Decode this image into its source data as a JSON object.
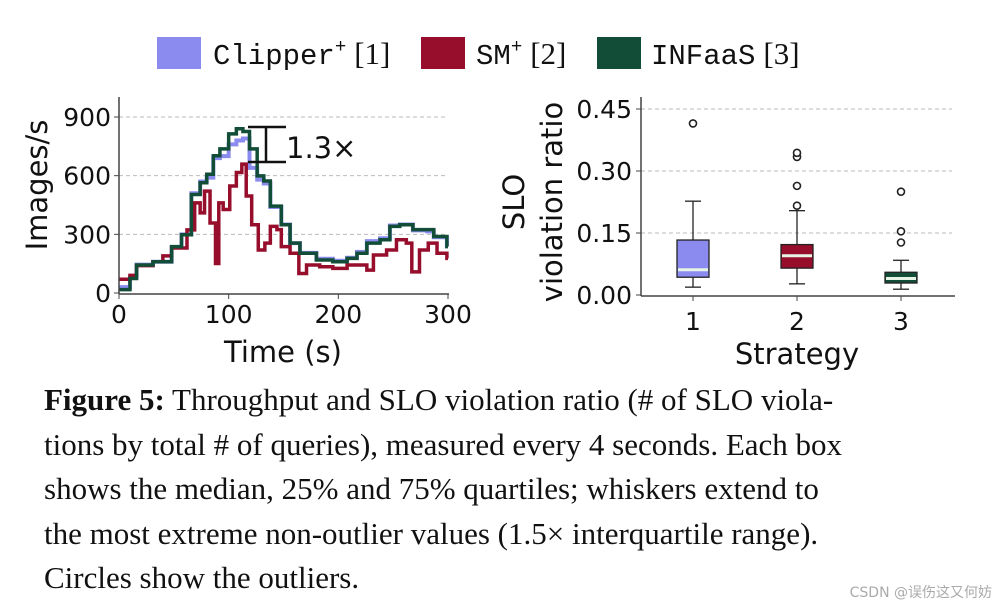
{
  "legend": [
    {
      "name": "Clipper",
      "sup": "+",
      "ref": "[1]",
      "color": "#8b8bef"
    },
    {
      "name": "SM",
      "sup": "+",
      "ref": "[2]",
      "color": "#960e2c"
    },
    {
      "name": "INFaaS",
      "sup": "",
      "ref": "[3]",
      "color": "#124e37"
    }
  ],
  "chart_data": [
    {
      "type": "line",
      "step": true,
      "xlabel": "Time (s)",
      "ylabel": "Images/s",
      "xlim": [
        0,
        300
      ],
      "ylim": [
        0,
        900
      ],
      "xticks": [
        "0",
        "100",
        "200",
        "300"
      ],
      "yticks": [
        "0",
        "300",
        "600",
        "900"
      ],
      "grid": "horizontal dashed",
      "annotation": "1.3×",
      "series": [
        {
          "name": "Clipper+ [1]",
          "color": "#8b8bef",
          "x": [
            0,
            10,
            16,
            31,
            48,
            57,
            66,
            74,
            80,
            86,
            92,
            100,
            107,
            113,
            119,
            126,
            132,
            138,
            148,
            156,
            165,
            180,
            195,
            208,
            217,
            226,
            238,
            247,
            256,
            268,
            281,
            287,
            299
          ],
          "y": [
            30,
            80,
            145,
            160,
            235,
            300,
            510,
            570,
            590,
            690,
            700,
            760,
            780,
            790,
            640,
            580,
            560,
            440,
            350,
            255,
            205,
            175,
            165,
            180,
            210,
            265,
            280,
            345,
            350,
            320,
            315,
            285,
            240
          ]
        },
        {
          "name": "SM+ [2]",
          "color": "#960e2c",
          "x": [
            0,
            10,
            16,
            31,
            40,
            48,
            62,
            69,
            74,
            78,
            83,
            88,
            91,
            95,
            101,
            107,
            112,
            116,
            121,
            127,
            133,
            138,
            144,
            148,
            156,
            164,
            171,
            183,
            195,
            208,
            220,
            226,
            232,
            244,
            253,
            262,
            267,
            274,
            282,
            290,
            299
          ],
          "y": [
            70,
            90,
            140,
            160,
            190,
            230,
            323,
            461,
            410,
            521,
            358,
            151,
            461,
            427,
            547,
            616,
            659,
            496,
            349,
            220,
            255,
            341,
            324,
            237,
            203,
            100,
            143,
            134,
            126,
            143,
            143,
            117,
            194,
            220,
            272,
            255,
            108,
            220,
            255,
            203,
            177
          ]
        },
        {
          "name": "INFaaS [3]",
          "color": "#124e37",
          "x": [
            0,
            10,
            16,
            31,
            48,
            57,
            66,
            74,
            80,
            86,
            92,
            100,
            107,
            113,
            119,
            126,
            132,
            138,
            148,
            156,
            165,
            180,
            195,
            208,
            217,
            226,
            238,
            247,
            256,
            268,
            281,
            287,
            299
          ],
          "y": [
            17,
            74,
            143,
            160,
            237,
            298,
            504,
            564,
            607,
            702,
            737,
            814,
            840,
            826,
            737,
            599,
            573,
            444,
            349,
            255,
            203,
            169,
            160,
            177,
            203,
            255,
            272,
            341,
            349,
            324,
            324,
            289,
            237
          ]
        }
      ]
    },
    {
      "type": "box",
      "xlabel": "Strategy",
      "ylabel": [
        "SLO",
        "violation ratio"
      ],
      "ylim": [
        0,
        0.45
      ],
      "yticks": [
        "0.00",
        "0.15",
        "0.30",
        "0.45"
      ],
      "categories": [
        "1",
        "2",
        "3"
      ],
      "grid": "horizontal dashed",
      "boxes": [
        {
          "color": "#8b8bef",
          "whisker_low": 0.019,
          "q1": 0.043,
          "median": 0.061,
          "q3": 0.133,
          "whisker_high": 0.227,
          "outliers": [
            0.415
          ]
        },
        {
          "color": "#960e2c",
          "whisker_low": 0.027,
          "q1": 0.065,
          "median": 0.095,
          "q3": 0.122,
          "whisker_high": 0.204,
          "outliers": [
            0.216,
            0.264,
            0.334,
            0.344
          ]
        },
        {
          "color": "#124e37",
          "whisker_low": 0.014,
          "q1": 0.029,
          "median": 0.04,
          "q3": 0.055,
          "whisker_high": 0.084,
          "outliers": [
            0.127,
            0.154,
            0.25
          ]
        }
      ]
    }
  ],
  "caption": {
    "label": "Figure 5:",
    "lines": [
      " Throughput and SLO violation ratio (# of SLO viola-",
      "tions by total # of queries), measured every 4 seconds. Each box",
      "shows the median, 25% and 75% quartiles; whiskers extend to",
      "the most extreme non-outlier values (1.5× interquartile range).",
      "Circles show the outliers."
    ]
  },
  "watermark": "CSDN @误伤这又何妨"
}
